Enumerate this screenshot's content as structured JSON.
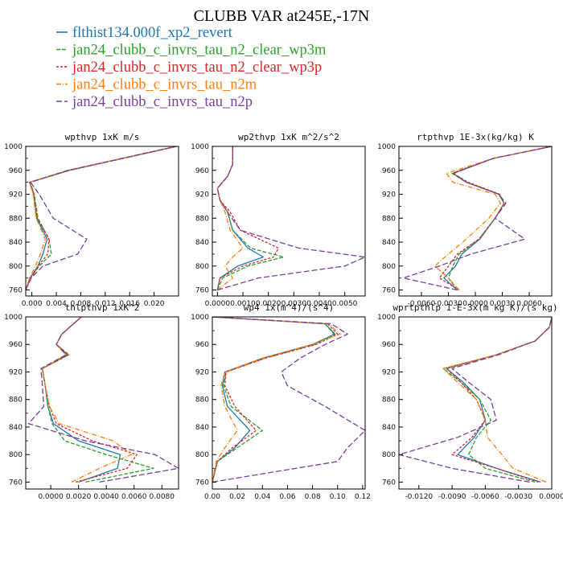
{
  "figure": {
    "title": "CLUBB VAR at245E,-17N"
  },
  "legend": [
    {
      "label": "flthist134.000f_xp2_revert",
      "color": "#1f77b4",
      "dash": false
    },
    {
      "label": "jan24_clubb_c_invrs_tau_n2_clear_wp3m",
      "color": "#2ca02c",
      "dash": true
    },
    {
      "label": "jan24_clubb_c_invrs_tau_n2_clear_wp3p",
      "color": "#d62728",
      "dash": true
    },
    {
      "label": "jan24_clubb_c_invrs_tau_n2m",
      "color": "#ff7f0e",
      "dash": true
    },
    {
      "label": "jan24_clubb_c_invrs_tau_n2p",
      "color": "#7b3f9e",
      "dash": true
    }
  ],
  "chart_data": [
    {
      "type": "line",
      "title": "wpthvp  1xK m/s",
      "xlim": [
        -0.001,
        0.024
      ],
      "ylim": [
        1000,
        750
      ],
      "xticks": [
        "0.000",
        "0.004",
        "0.008",
        "0.012",
        "0.016",
        "0.020"
      ],
      "xtick_values": [
        0.0,
        0.004,
        0.008,
        0.012,
        0.016,
        0.02
      ],
      "yticks": [
        760,
        800,
        840,
        880,
        920,
        960,
        1000
      ],
      "y": [
        760,
        780,
        800,
        820,
        845,
        880,
        920,
        940,
        960,
        1000
      ],
      "series": [
        {
          "name": "flthist134.000f_xp2_revert",
          "values": [
            -0.001,
            -0.0003,
            0.001,
            0.0018,
            0.0025,
            0.0008,
            0.0003,
            -0.0004,
            0.006,
            0.0236
          ]
        },
        {
          "name": "jan24_clubb_c_invrs_tau_n2_clear_wp3m",
          "values": [
            -0.001,
            -0.0002,
            0.0012,
            0.0032,
            0.0028,
            0.001,
            0.0004,
            -0.0003,
            0.0062,
            0.0237
          ]
        },
        {
          "name": "jan24_clubb_c_invrs_tau_n2_clear_wp3p",
          "values": [
            -0.001,
            -0.0002,
            0.001,
            0.0026,
            0.0028,
            0.0009,
            0.0003,
            -0.0003,
            0.0061,
            0.0237
          ]
        },
        {
          "name": "jan24_clubb_c_invrs_tau_n2m",
          "values": [
            -0.001,
            -0.0004,
            0.0006,
            0.0014,
            0.0022,
            0.0007,
            0.0002,
            -0.0004,
            0.0058,
            0.0235
          ]
        },
        {
          "name": "jan24_clubb_c_invrs_tau_n2p",
          "values": [
            -0.001,
            -0.0001,
            0.0018,
            0.0075,
            0.009,
            0.0035,
            0.0012,
            -0.0002,
            0.006,
            0.0236
          ]
        }
      ]
    },
    {
      "type": "line",
      "title": "wp2thvp  1xK m^2/s^2",
      "xlim": [
        -0.0002,
        0.0058
      ],
      "ylim": [
        1000,
        750
      ],
      "xticks": [
        "0.0000",
        "0.0010",
        "0.0020",
        "0.0030",
        "0.0040",
        "0.0050"
      ],
      "xtick_values": [
        0.0,
        0.001,
        0.002,
        0.003,
        0.004,
        0.005
      ],
      "yticks": [
        760,
        800,
        840,
        880,
        920,
        960,
        1000
      ],
      "y": [
        760,
        780,
        800,
        815,
        830,
        860,
        890,
        910,
        930,
        950,
        970,
        1000
      ],
      "series": [
        {
          "name": "flthist134.000f_xp2_revert",
          "values": [
            0.0,
            0.0001,
            0.0008,
            0.0018,
            0.0012,
            0.0006,
            0.0004,
            0.0001,
            0.0,
            0.0004,
            0.0006,
            0.0006
          ]
        },
        {
          "name": "jan24_clubb_c_invrs_tau_n2_clear_wp3m",
          "values": [
            0.0,
            0.0002,
            0.0012,
            0.0026,
            0.0013,
            0.0006,
            0.0004,
            0.0001,
            0.0,
            0.0004,
            0.0006,
            0.0006
          ]
        },
        {
          "name": "jan24_clubb_c_invrs_tau_n2_clear_wp3p",
          "values": [
            0.0,
            0.0001,
            0.001,
            0.0022,
            0.0024,
            0.0009,
            0.0005,
            0.0001,
            0.0,
            0.0004,
            0.0006,
            0.0006
          ]
        },
        {
          "name": "jan24_clubb_c_invrs_tau_n2m",
          "values": [
            0.0,
            0.0006,
            0.0003,
            0.0006,
            0.001,
            0.0005,
            0.0003,
            0.0001,
            0.0,
            0.0004,
            0.0006,
            0.0006
          ]
        },
        {
          "name": "jan24_clubb_c_invrs_tau_n2p",
          "values": [
            0.0,
            0.0016,
            0.005,
            0.0058,
            0.0032,
            0.0009,
            0.0004,
            0.0001,
            0.0,
            0.0004,
            0.0006,
            0.0006
          ]
        }
      ]
    },
    {
      "type": "line",
      "title": "rtpthvp  1E-3x(kg/kg) K",
      "xlim": [
        -0.0085,
        0.0085
      ],
      "ylim": [
        1000,
        750
      ],
      "xticks": [
        "-0.0060",
        "-0.0030",
        "0.0000",
        "0.0030",
        "0.0060"
      ],
      "xtick_values": [
        -0.006,
        -0.003,
        0.0,
        0.003,
        0.006
      ],
      "yticks": [
        760,
        800,
        840,
        880,
        920,
        960,
        1000
      ],
      "y": [
        760,
        780,
        800,
        820,
        845,
        880,
        905,
        920,
        940,
        955,
        980,
        1000
      ],
      "series": [
        {
          "name": "flthist134.000f_xp2_revert",
          "values": [
            -0.002,
            -0.0035,
            -0.0022,
            -0.0015,
            0.0005,
            0.0022,
            0.0032,
            0.0026,
            -0.001,
            -0.0025,
            0.002,
            0.0085
          ]
        },
        {
          "name": "jan24_clubb_c_invrs_tau_n2_clear_wp3m",
          "values": [
            -0.002,
            -0.003,
            -0.0025,
            -0.0018,
            0.0004,
            0.0022,
            0.0032,
            0.0027,
            -0.001,
            -0.0026,
            0.002,
            0.0085
          ]
        },
        {
          "name": "jan24_clubb_c_invrs_tau_n2_clear_wp3p",
          "values": [
            -0.0018,
            -0.004,
            -0.003,
            -0.002,
            0.0004,
            0.0022,
            0.0032,
            0.0027,
            -0.0008,
            -0.0025,
            0.002,
            0.0085
          ]
        },
        {
          "name": "jan24_clubb_c_invrs_tau_n2m",
          "values": [
            -0.0018,
            -0.003,
            -0.0045,
            -0.003,
            -0.001,
            0.0015,
            0.0028,
            0.0022,
            -0.0025,
            -0.0032,
            0.002,
            0.0085
          ]
        },
        {
          "name": "jan24_clubb_c_invrs_tau_n2p",
          "values": [
            -0.002,
            -0.008,
            -0.004,
            -0.0005,
            0.0055,
            0.0022,
            0.0034,
            0.0026,
            -0.001,
            -0.0024,
            0.002,
            0.0085
          ]
        }
      ]
    },
    {
      "type": "line",
      "title": "thlpthvp  1xK^2",
      "xlim": [
        -0.0018,
        0.0092
      ],
      "ylim": [
        1000,
        750
      ],
      "xticks": [
        "0.0000",
        "0.0020",
        "0.0040",
        "0.0060",
        "0.0080"
      ],
      "xtick_values": [
        0.0,
        0.002,
        0.004,
        0.006,
        0.008
      ],
      "yticks": [
        760,
        800,
        840,
        880,
        920,
        960,
        1000
      ],
      "y": [
        760,
        780,
        800,
        820,
        845,
        870,
        900,
        925,
        945,
        960,
        975,
        1000
      ],
      "series": [
        {
          "name": "flthist134.000f_xp2_revert",
          "values": [
            0.002,
            0.0048,
            0.005,
            0.002,
            0.0002,
            -0.0002,
            -0.0004,
            -0.0006,
            0.0012,
            0.0004,
            0.0008,
            0.0022
          ]
        },
        {
          "name": "jan24_clubb_c_invrs_tau_n2_clear_wp3m",
          "values": [
            0.0025,
            0.0074,
            0.004,
            0.001,
            0.0001,
            -0.0002,
            -0.0004,
            -0.0006,
            0.0013,
            0.0004,
            0.0008,
            0.0022
          ]
        },
        {
          "name": "jan24_clubb_c_invrs_tau_n2_clear_wp3p",
          "values": [
            0.0018,
            0.0055,
            0.0062,
            0.003,
            0.0004,
            -0.0001,
            -0.0004,
            -0.0006,
            0.0013,
            0.0004,
            0.0008,
            0.0022
          ]
        },
        {
          "name": "jan24_clubb_c_invrs_tau_n2m",
          "values": [
            0.0015,
            0.0035,
            0.0058,
            0.0045,
            0.0006,
            -0.0001,
            -0.0004,
            -0.0006,
            0.0011,
            0.0004,
            0.0008,
            0.0022
          ]
        },
        {
          "name": "jan24_clubb_c_invrs_tau_n2p",
          "values": [
            0.0035,
            0.0092,
            0.0075,
            0.0025,
            -0.0016,
            -0.0005,
            -0.0006,
            -0.0007,
            0.0011,
            0.0004,
            0.0008,
            0.0022
          ]
        }
      ]
    },
    {
      "type": "line",
      "title": "wp4  1x(m^4)/(s^4)",
      "xlim": [
        0.0,
        0.122
      ],
      "ylim": [
        1000,
        750
      ],
      "xticks": [
        "0.00",
        "0.02",
        "0.04",
        "0.06",
        "0.08",
        "0.10",
        "0.12"
      ],
      "xtick_values": [
        0.0,
        0.02,
        0.04,
        0.06,
        0.08,
        0.1,
        0.12
      ],
      "yticks": [
        760,
        800,
        840,
        880,
        920,
        960,
        1000
      ],
      "y": [
        760,
        790,
        810,
        835,
        870,
        900,
        920,
        940,
        960,
        975,
        990,
        1000
      ],
      "series": [
        {
          "name": "flthist134.000f_xp2_revert",
          "values": [
            0.0,
            0.004,
            0.018,
            0.03,
            0.012,
            0.008,
            0.01,
            0.04,
            0.08,
            0.098,
            0.09,
            0.0
          ]
        },
        {
          "name": "jan24_clubb_c_invrs_tau_n2_clear_wp3m",
          "values": [
            0.0,
            0.004,
            0.02,
            0.04,
            0.015,
            0.009,
            0.011,
            0.042,
            0.082,
            0.097,
            0.09,
            0.0
          ]
        },
        {
          "name": "jan24_clubb_c_invrs_tau_n2_clear_wp3p",
          "values": [
            0.0,
            0.004,
            0.016,
            0.035,
            0.018,
            0.01,
            0.011,
            0.042,
            0.083,
            0.1,
            0.092,
            0.0
          ]
        },
        {
          "name": "jan24_clubb_c_invrs_tau_n2m",
          "values": [
            0.0,
            0.003,
            0.01,
            0.02,
            0.01,
            0.007,
            0.01,
            0.04,
            0.08,
            0.102,
            0.093,
            0.0
          ]
        },
        {
          "name": "jan24_clubb_c_invrs_tau_n2p",
          "values": [
            0.0,
            0.1,
            0.108,
            0.122,
            0.09,
            0.06,
            0.055,
            0.07,
            0.09,
            0.108,
            0.095,
            0.0
          ]
        }
      ]
    },
    {
      "type": "line",
      "title": "wprtpthlp  1-E-3x(m kg K)/(s kg)",
      "xlim": [
        -0.0138,
        0.0
      ],
      "ylim": [
        1000,
        750
      ],
      "xticks": [
        "-0.0120",
        "-0.0090",
        "-0.0060",
        "-0.0030",
        "0.0000"
      ],
      "xtick_values": [
        -0.012,
        -0.009,
        -0.006,
        -0.003,
        0.0
      ],
      "yticks": [
        760,
        800,
        840,
        880,
        920,
        960,
        1000
      ],
      "y": [
        760,
        780,
        800,
        825,
        850,
        880,
        905,
        925,
        945,
        965,
        985,
        1000
      ],
      "series": [
        {
          "name": "flthist134.000f_xp2_revert",
          "values": [
            -0.001,
            -0.005,
            -0.0085,
            -0.007,
            -0.006,
            -0.0065,
            -0.008,
            -0.0095,
            -0.005,
            -0.0015,
            -0.0002,
            0.0
          ]
        },
        {
          "name": "jan24_clubb_c_invrs_tau_n2_clear_wp3m",
          "values": [
            -0.0015,
            -0.006,
            -0.0075,
            -0.0068,
            -0.0055,
            -0.0065,
            -0.0082,
            -0.0098,
            -0.005,
            -0.0015,
            -0.0002,
            0.0
          ]
        },
        {
          "name": "jan24_clubb_c_invrs_tau_n2_clear_wp3p",
          "values": [
            -0.0012,
            -0.005,
            -0.009,
            -0.0072,
            -0.006,
            -0.0068,
            -0.0082,
            -0.0095,
            -0.005,
            -0.0015,
            -0.0002,
            0.0
          ]
        },
        {
          "name": "jan24_clubb_c_invrs_tau_n2m",
          "values": [
            -0.0005,
            -0.0035,
            -0.0045,
            -0.0058,
            -0.006,
            -0.0068,
            -0.0085,
            -0.0098,
            -0.005,
            -0.0015,
            -0.0002,
            0.0
          ]
        },
        {
          "name": "jan24_clubb_c_invrs_tau_n2p",
          "values": [
            -0.002,
            -0.009,
            -0.0138,
            -0.0085,
            -0.005,
            -0.0055,
            -0.0075,
            -0.009,
            -0.0048,
            -0.0015,
            -0.0002,
            0.0
          ]
        }
      ]
    }
  ]
}
